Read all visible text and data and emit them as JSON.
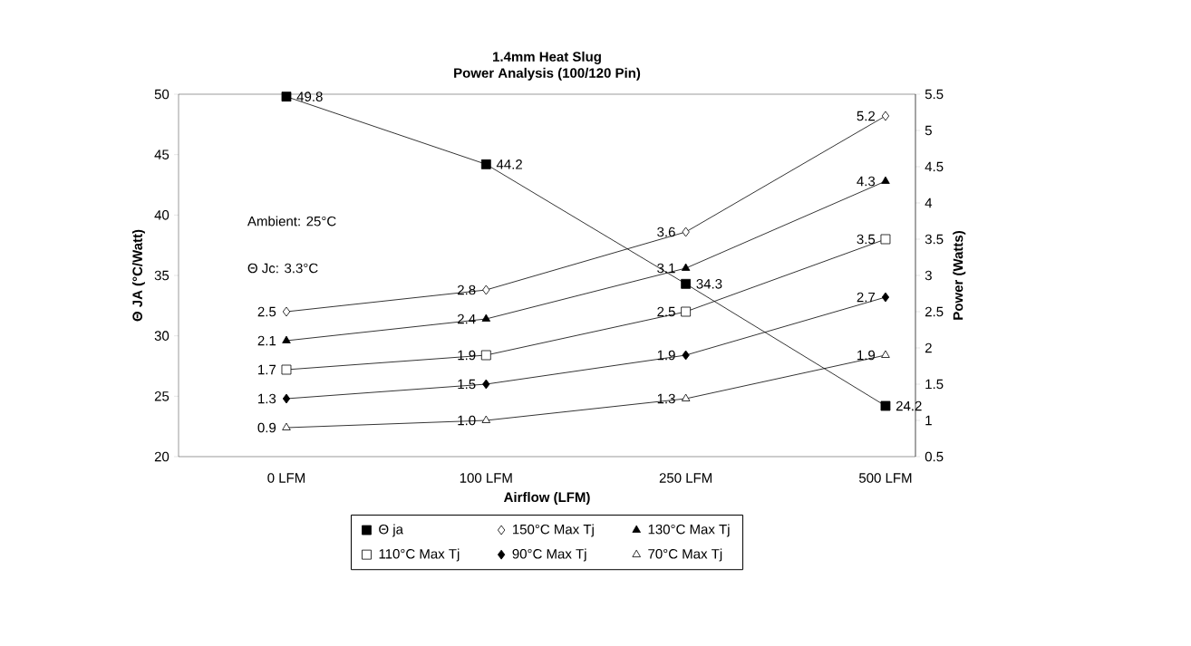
{
  "chart_data": {
    "type": "line",
    "title": "1.4mm Heat Slug",
    "subtitle": "Power Analysis (100/120 Pin)",
    "xlabel": "Airflow (LFM)",
    "ylabel": "Θ JA (°C/Watt)",
    "y2label": "Power (Watts)",
    "categories": [
      "0 LFM",
      "100 LFM",
      "250 LFM",
      "500 LFM"
    ],
    "ylim": [
      20,
      50
    ],
    "yticks": [
      20,
      25,
      30,
      35,
      40,
      45,
      50
    ],
    "y2lim": [
      0.5,
      5.5
    ],
    "y2ticks": [
      0.5,
      1,
      1.5,
      2,
      2.5,
      3,
      3.5,
      4,
      4.5,
      5,
      5.5
    ],
    "series": [
      {
        "name": "Θ ja",
        "color": "#000000",
        "marker": "square",
        "axis": "y",
        "values": [
          49.8,
          44.2,
          34.3,
          24.2
        ],
        "value_labels": [
          "49.8",
          "44.2",
          "34.3",
          "24.2"
        ]
      },
      {
        "name": "150°C Max Tj",
        "color": "#ffffff",
        "marker": "diamond",
        "axis": "y2",
        "values": [
          2.5,
          2.8,
          3.6,
          5.2
        ],
        "value_labels": [
          "2.5",
          "2.8",
          "3.6",
          "5.2"
        ]
      },
      {
        "name": "130°C Max Tj",
        "color": "#000000",
        "marker": "triangle",
        "axis": "y2",
        "values": [
          2.1,
          2.4,
          3.1,
          4.3
        ],
        "value_labels": [
          "2.1",
          "2.4",
          "3.1",
          "4.3"
        ]
      },
      {
        "name": "110°C Max Tj",
        "color": "#ffffff",
        "marker": "square",
        "axis": "y2",
        "values": [
          1.7,
          1.9,
          2.5,
          3.5
        ],
        "value_labels": [
          "1.7",
          "1.9",
          "2.5",
          "3.5"
        ]
      },
      {
        "name": "90°C Max Tj",
        "color": "#000000",
        "marker": "diamond",
        "axis": "y2",
        "values": [
          1.3,
          1.5,
          1.9,
          2.7
        ],
        "value_labels": [
          "1.3",
          "1.5",
          "1.9",
          "2.7"
        ]
      },
      {
        "name": "70°C Max Tj",
        "color": "#ffffff",
        "marker": "triangle",
        "axis": "y2",
        "values": [
          0.9,
          1.0,
          1.3,
          1.9
        ],
        "value_labels": [
          "0.9",
          "1.0",
          "1.3",
          "1.9"
        ]
      }
    ],
    "annotations": [
      "Ambient: 25°C",
      "Θ Jc: 3.3°C"
    ],
    "legend": "bottom",
    "grid": false
  }
}
